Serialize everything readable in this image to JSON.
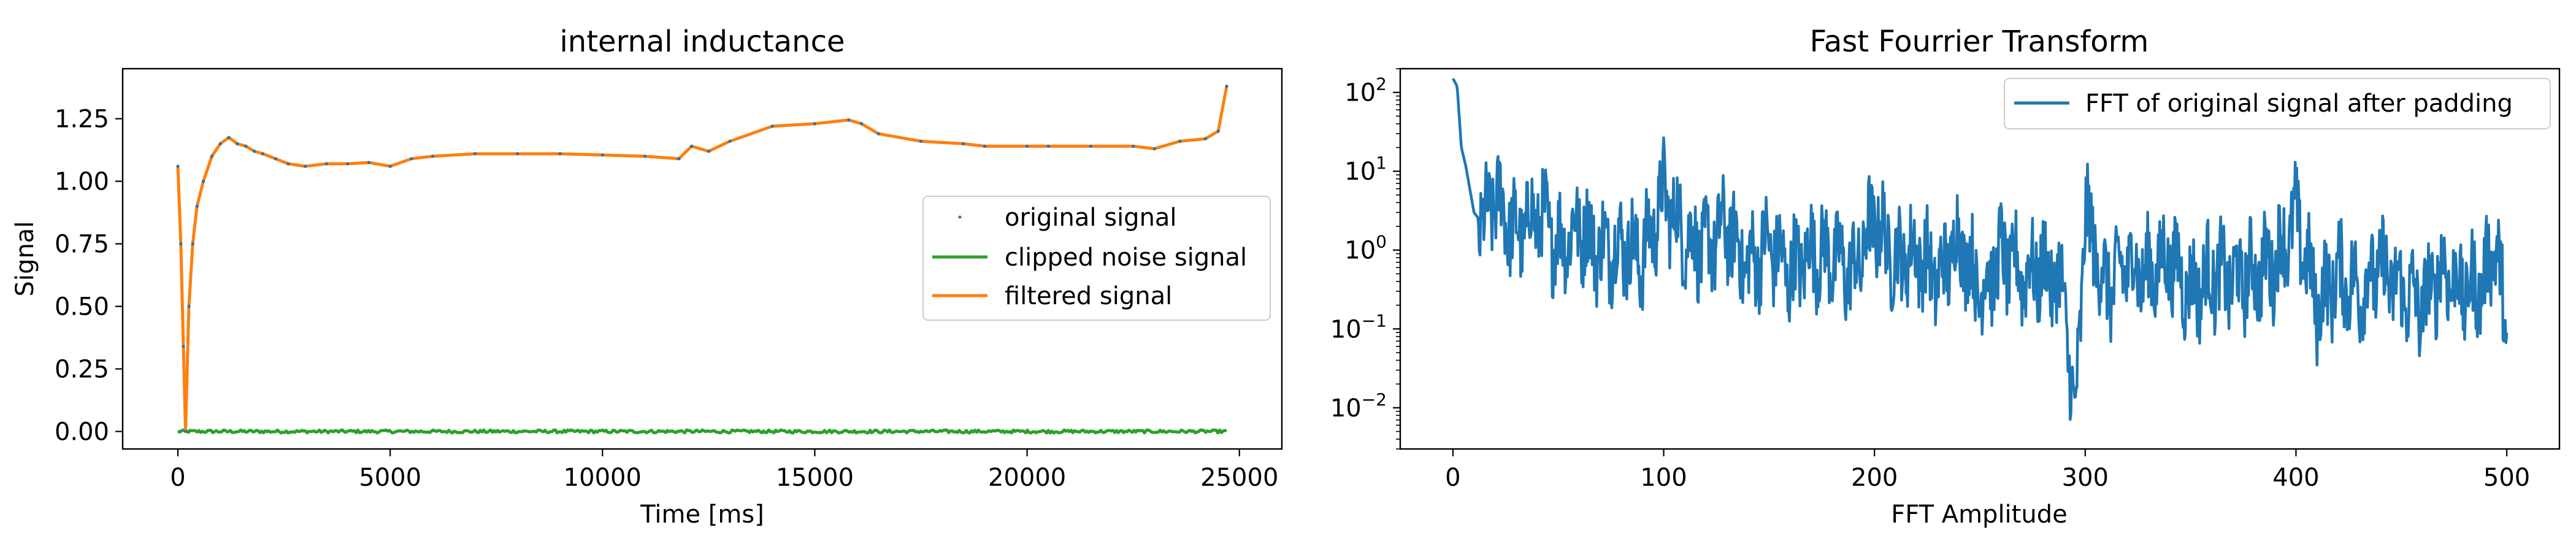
{
  "chart_data": [
    {
      "type": "line",
      "title": "internal inductance",
      "xlabel": "Time [ms]",
      "ylabel": "Signal",
      "xlim": [
        -1300,
        26000
      ],
      "ylim": [
        -0.07,
        1.45
      ],
      "xticks": [
        0,
        5000,
        10000,
        15000,
        20000,
        25000
      ],
      "xtick_labels": [
        "0",
        "5000",
        "10000",
        "15000",
        "20000",
        "25000"
      ],
      "yticks": [
        0.0,
        0.25,
        0.5,
        0.75,
        1.0,
        1.25
      ],
      "ytick_labels": [
        "0.00",
        "0.25",
        "0.50",
        "0.75",
        "1.00",
        "1.25"
      ],
      "grid": false,
      "legend": "center-right",
      "x_extent": [
        0,
        24700
      ],
      "series": [
        {
          "name": "original signal",
          "style": "points",
          "color": "#1f77b4",
          "x": [
            0,
            70,
            130,
            180,
            260,
            350,
            450,
            600,
            800,
            1000,
            1200,
            1400,
            1600,
            1800,
            2000,
            2300,
            2600,
            3000,
            3500,
            4000,
            4500,
            5000,
            5500,
            6000,
            7000,
            8000,
            9000,
            10000,
            11000,
            11800,
            12100,
            12500,
            13000,
            14000,
            15000,
            15800,
            16100,
            16500,
            17500,
            18500,
            19000,
            20000,
            20500,
            21500,
            22500,
            23000,
            23600,
            24200,
            24500,
            24700
          ],
          "y": [
            1.06,
            0.75,
            0.34,
            0.0,
            0.5,
            0.75,
            0.9,
            1.0,
            1.1,
            1.15,
            1.175,
            1.15,
            1.14,
            1.12,
            1.11,
            1.09,
            1.07,
            1.06,
            1.07,
            1.07,
            1.075,
            1.06,
            1.09,
            1.1,
            1.11,
            1.11,
            1.11,
            1.105,
            1.1,
            1.09,
            1.14,
            1.12,
            1.16,
            1.22,
            1.23,
            1.245,
            1.23,
            1.19,
            1.16,
            1.15,
            1.14,
            1.14,
            1.14,
            1.14,
            1.14,
            1.13,
            1.16,
            1.17,
            1.2,
            1.38
          ]
        },
        {
          "name": "clipped noise signal",
          "style": "line",
          "color": "#2ca02c",
          "x": [
            0,
            24700
          ],
          "y": [
            0.0,
            0.0
          ]
        },
        {
          "name": "filtered signal",
          "style": "line",
          "color": "#ff7f0e",
          "x": [
            0,
            70,
            130,
            180,
            260,
            350,
            450,
            600,
            800,
            1000,
            1200,
            1400,
            1600,
            1800,
            2000,
            2300,
            2600,
            3000,
            3500,
            4000,
            4500,
            5000,
            5500,
            6000,
            7000,
            8000,
            9000,
            10000,
            11000,
            11800,
            12100,
            12500,
            13000,
            14000,
            15000,
            15800,
            16100,
            16500,
            17500,
            18500,
            19000,
            20000,
            20500,
            21500,
            22500,
            23000,
            23600,
            24200,
            24500,
            24700
          ],
          "y": [
            1.06,
            0.75,
            0.34,
            0.0,
            0.5,
            0.75,
            0.9,
            1.0,
            1.1,
            1.15,
            1.175,
            1.15,
            1.14,
            1.12,
            1.11,
            1.09,
            1.07,
            1.06,
            1.07,
            1.07,
            1.075,
            1.06,
            1.09,
            1.1,
            1.11,
            1.11,
            1.11,
            1.105,
            1.1,
            1.09,
            1.14,
            1.12,
            1.16,
            1.22,
            1.23,
            1.245,
            1.23,
            1.19,
            1.16,
            1.15,
            1.14,
            1.14,
            1.14,
            1.14,
            1.14,
            1.13,
            1.16,
            1.17,
            1.2,
            1.38
          ]
        }
      ]
    },
    {
      "type": "line",
      "title": "Fast Fourrier Transform",
      "xlabel": "FFT Amplitude",
      "ylabel": "",
      "yscale": "log",
      "xlim": [
        -25,
        525
      ],
      "ylim": [
        0.003,
        200
      ],
      "xticks": [
        0,
        100,
        200,
        300,
        400,
        500
      ],
      "xtick_labels": [
        "0",
        "100",
        "200",
        "300",
        "400",
        "500"
      ],
      "yticks": [
        0.01,
        0.1,
        1,
        10,
        100
      ],
      "ytick_labels": [
        {
          "base": "10",
          "exp": "−2"
        },
        {
          "base": "10",
          "exp": "−1"
        },
        {
          "base": "10",
          "exp": "0"
        },
        {
          "base": "10",
          "exp": "1"
        },
        {
          "base": "10",
          "exp": "2"
        }
      ],
      "grid": false,
      "legend": "top-right",
      "series": [
        {
          "name": "FFT of original signal after padding",
          "color": "#1f77b4",
          "x": [
            0,
            2,
            4,
            6,
            8,
            10,
            15,
            20,
            30,
            40,
            50,
            60,
            70,
            80,
            90,
            100,
            110,
            120,
            130,
            140,
            150,
            160,
            170,
            180,
            190,
            200,
            210,
            220,
            230,
            240,
            250,
            260,
            270,
            280,
            290,
            295,
            300,
            310,
            320,
            330,
            340,
            350,
            360,
            370,
            380,
            390,
            400,
            410,
            420,
            430,
            440,
            450,
            460,
            470,
            480,
            490,
            495,
            500
          ],
          "y": [
            150,
            120,
            20,
            12,
            6,
            3,
            2,
            5,
            1.5,
            3,
            1.2,
            2,
            1.0,
            1.2,
            0.8,
            5,
            1.5,
            1.0,
            2,
            0.6,
            1.2,
            0.5,
            1.0,
            0.8,
            0.5,
            2.5,
            0.7,
            1.0,
            0.4,
            1.5,
            0.3,
            0.8,
            0.5,
            0.6,
            0.3,
            0.005,
            3,
            0.3,
            0.7,
            0.5,
            0.8,
            0.3,
            0.5,
            0.4,
            0.5,
            0.7,
            2.5,
            0.2,
            0.5,
            0.3,
            0.6,
            0.3,
            0.2,
            0.6,
            0.3,
            0.4,
            1.5,
            0.05
          ]
        }
      ]
    }
  ]
}
